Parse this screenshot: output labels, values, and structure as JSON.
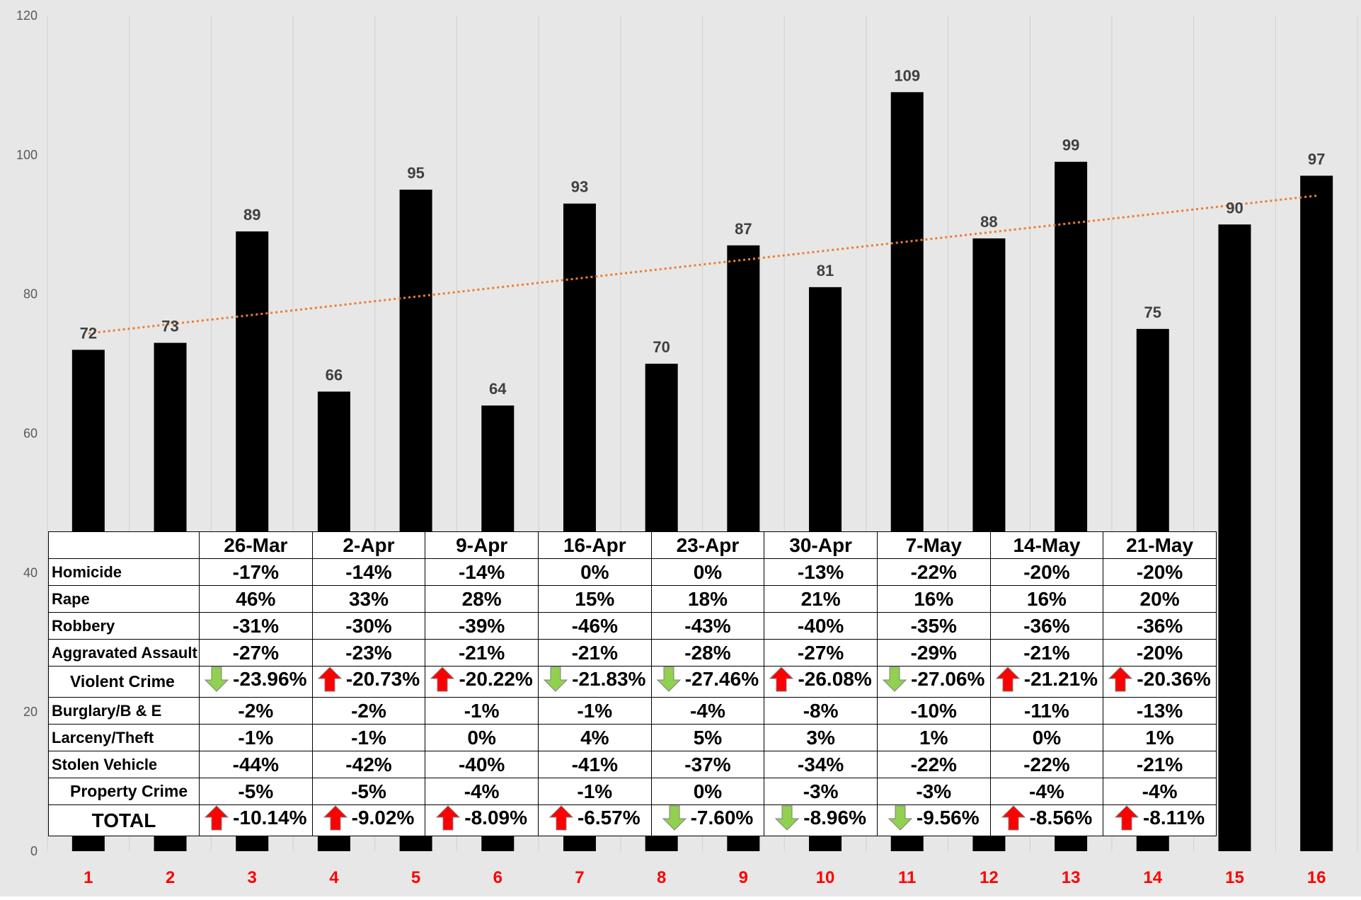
{
  "chart_data": {
    "type": "bar",
    "categories": [
      "1",
      "2",
      "3",
      "4",
      "5",
      "6",
      "7",
      "8",
      "9",
      "10",
      "11",
      "12",
      "13",
      "14",
      "15",
      "16"
    ],
    "values": [
      72,
      73,
      89,
      66,
      95,
      64,
      93,
      70,
      87,
      81,
      109,
      88,
      99,
      75,
      90,
      97
    ],
    "ylim": [
      0,
      120
    ],
    "yticks": [
      0,
      20,
      40,
      60,
      80,
      100,
      120
    ],
    "grid": "vertical",
    "trendline": {
      "style": "dotted",
      "color": "#ED7D31",
      "type": "linear"
    },
    "bar_color": "#000000",
    "category_label_color": "#FF0000"
  },
  "table": {
    "headers": [
      "26-Mar",
      "2-Apr",
      "9-Apr",
      "16-Apr",
      "23-Apr",
      "30-Apr",
      "7-May",
      "14-May",
      "21-May"
    ],
    "rows": [
      {
        "label": "Homicide",
        "kind": "normal",
        "values": [
          "-17%",
          "-14%",
          "-14%",
          "0%",
          "0%",
          "-13%",
          "-22%",
          "-20%",
          "-20%"
        ]
      },
      {
        "label": "Rape",
        "kind": "normal",
        "values": [
          "46%",
          "33%",
          "28%",
          "15%",
          "18%",
          "21%",
          "16%",
          "16%",
          "20%"
        ]
      },
      {
        "label": "Robbery",
        "kind": "normal",
        "values": [
          "-31%",
          "-30%",
          "-39%",
          "-46%",
          "-43%",
          "-40%",
          "-35%",
          "-36%",
          "-36%"
        ]
      },
      {
        "label": "Aggravated Assault",
        "kind": "normal",
        "values": [
          "-27%",
          "-23%",
          "-21%",
          "-21%",
          "-28%",
          "-27%",
          "-29%",
          "-21%",
          "-20%"
        ]
      },
      {
        "label": "Violent Crime",
        "kind": "subtotal",
        "values": [
          "-23.96%",
          "-20.73%",
          "-20.22%",
          "-21.83%",
          "-27.46%",
          "-26.08%",
          "-27.06%",
          "-21.21%",
          "-20.36%"
        ],
        "arrows": [
          "down",
          "up",
          "up",
          "down",
          "down",
          "up",
          "down",
          "up",
          "up"
        ]
      },
      {
        "label": "Burglary/B & E",
        "kind": "normal",
        "values": [
          "-2%",
          "-2%",
          "-1%",
          "-1%",
          "-4%",
          "-8%",
          "-10%",
          "-11%",
          "-13%"
        ]
      },
      {
        "label": "Larceny/Theft",
        "kind": "normal",
        "values": [
          "-1%",
          "-1%",
          "0%",
          "4%",
          "5%",
          "3%",
          "1%",
          "0%",
          "1%"
        ]
      },
      {
        "label": "Stolen Vehicle",
        "kind": "normal",
        "values": [
          "-44%",
          "-42%",
          "-40%",
          "-41%",
          "-37%",
          "-34%",
          "-22%",
          "-22%",
          "-21%"
        ]
      },
      {
        "label": "Property Crime",
        "kind": "subtotal",
        "values": [
          "-5%",
          "-5%",
          "-4%",
          "-1%",
          "0%",
          "-3%",
          "-3%",
          "-4%",
          "-4%"
        ]
      },
      {
        "label": "TOTAL",
        "kind": "total",
        "values": [
          "-10.14%",
          "-9.02%",
          "-8.09%",
          "-6.57%",
          "-7.60%",
          "-8.96%",
          "-9.56%",
          "-8.56%",
          "-8.11%"
        ],
        "arrows": [
          "up",
          "up",
          "up",
          "up",
          "down",
          "down",
          "down",
          "up",
          "up"
        ]
      }
    ]
  },
  "colors": {
    "plot_background": "#E7E7E7",
    "gridline": "#D0D0D0",
    "value_label": "#404040",
    "arrow_up": "#FF0000",
    "arrow_down": "#92D050",
    "axis_tick_label": "#595959"
  },
  "icons": {
    "up": "red-up-arrow-icon",
    "down": "green-down-arrow-icon"
  }
}
